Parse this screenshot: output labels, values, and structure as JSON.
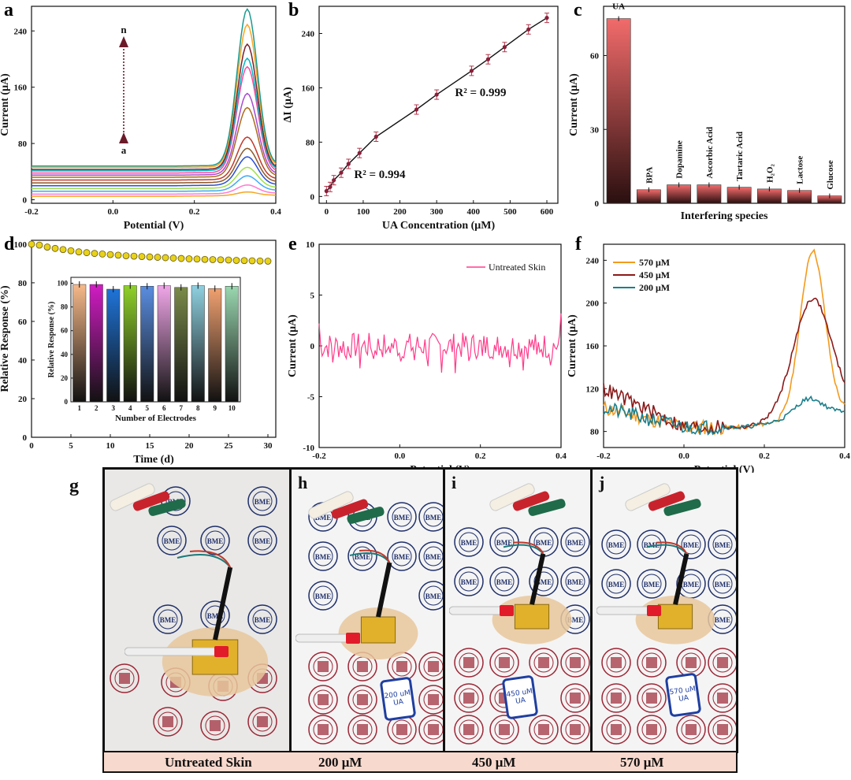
{
  "panel_labels": [
    "a",
    "b",
    "c",
    "d",
    "e",
    "f",
    "g",
    "h",
    "i",
    "j"
  ],
  "chart_data": [
    {
      "id": "a",
      "type": "line",
      "xlabel": "Potential (V)",
      "ylabel": "Current (μA)",
      "xlim": [
        -0.2,
        0.4
      ],
      "ylim": [
        -5,
        275
      ],
      "xticks": [
        "-0.2",
        "0.0",
        "0.2",
        "0.4"
      ],
      "yticks": [
        "0",
        "80",
        "160",
        "240"
      ],
      "arrow_labels": {
        "top": "n",
        "bottom": "a"
      },
      "peak_x": 0.33,
      "series": [
        {
          "baseline": 5,
          "peak": 10,
          "color": "#f5a623"
        },
        {
          "baseline": 8,
          "peak": 20,
          "color": "#ff7bd1"
        },
        {
          "baseline": 12,
          "peak": 33,
          "color": "#3fa9f5"
        },
        {
          "baseline": 16,
          "peak": 45,
          "color": "#a0e04a"
        },
        {
          "baseline": 20,
          "peak": 60,
          "color": "#2a4fd6"
        },
        {
          "baseline": 24,
          "peak": 72,
          "color": "#8c5a2b"
        },
        {
          "baseline": 28,
          "peak": 88,
          "color": "#c0392b"
        },
        {
          "baseline": 32,
          "peak": 130,
          "color": "#ad6b1b"
        },
        {
          "baseline": 35,
          "peak": 150,
          "color": "#a64bd1"
        },
        {
          "baseline": 38,
          "peak": 188,
          "color": "#ff4aa0"
        },
        {
          "baseline": 41,
          "peak": 200,
          "color": "#00b8c4"
        },
        {
          "baseline": 43,
          "peak": 220,
          "color": "#7a1f2b"
        },
        {
          "baseline": 46,
          "peak": 248,
          "color": "#ffa620"
        },
        {
          "baseline": 48,
          "peak": 270,
          "color": "#1a9a8e"
        }
      ]
    },
    {
      "id": "b",
      "type": "scatter",
      "xlabel": "UA Concentration (μM)",
      "ylabel": "ΔI (μA)",
      "xlim": [
        -20,
        630
      ],
      "ylim": [
        -10,
        280
      ],
      "xticks": [
        "0",
        "100",
        "200",
        "300",
        "400",
        "500",
        "600"
      ],
      "yticks": [
        "0",
        "80",
        "160",
        "240"
      ],
      "x": [
        0,
        10,
        20,
        40,
        60,
        90,
        135,
        245,
        300,
        395,
        440,
        485,
        550,
        600
      ],
      "y": [
        8,
        14,
        24,
        35,
        48,
        64,
        88,
        128,
        150,
        185,
        202,
        220,
        246,
        263
      ],
      "annotations": [
        "R² = 0.999",
        "R² = 0.994"
      ]
    },
    {
      "id": "c",
      "type": "bar",
      "xlabel": "Interfering species",
      "ylabel": "Current (μA)",
      "ylim": [
        0,
        80
      ],
      "yticks": [
        "0",
        "30",
        "60"
      ],
      "categories": [
        "UA",
        "BPA",
        "Dopamine",
        "Ascorbic Acid",
        "Tartaric Acid",
        "H₂O₂",
        "Lactose",
        "Glucose"
      ],
      "values": [
        75,
        5.5,
        7.5,
        7.5,
        6.5,
        5.8,
        5.2,
        3.0
      ]
    },
    {
      "id": "d",
      "type": "bar",
      "xlabel": "Time (d)",
      "ylabel": "Relative Response (%)",
      "xlim": [
        0,
        31
      ],
      "ylim": [
        0,
        102
      ],
      "xticks": [
        "0",
        "5",
        "10",
        "15",
        "20",
        "25",
        "30"
      ],
      "yticks": [
        "0",
        "20",
        "40",
        "60",
        "80",
        "100"
      ],
      "time": [
        0,
        1,
        2,
        3,
        4,
        5,
        6,
        7,
        8,
        9,
        10,
        11,
        12,
        13,
        14,
        15,
        16,
        17,
        18,
        19,
        20,
        21,
        22,
        23,
        24,
        25,
        26,
        27,
        28,
        29,
        30
      ],
      "stability": [
        100,
        99.5,
        98.5,
        97.8,
        97.2,
        96.6,
        96.0,
        95.6,
        95.2,
        94.9,
        94.6,
        94.3,
        94.0,
        93.8,
        93.6,
        93.4,
        93.2,
        93.0,
        92.8,
        92.6,
        92.4,
        92.3,
        92.1,
        92.0,
        91.9,
        91.8,
        91.6,
        91.5,
        91.4,
        91.3,
        91.2
      ],
      "inset": {
        "xlabel": "Number of Electrodes",
        "ylabel": "Relative Response (%)",
        "ylim": [
          0,
          105
        ],
        "yticks": [
          "0",
          "20",
          "40",
          "60",
          "80",
          "100"
        ],
        "categories": [
          "1",
          "2",
          "3",
          "4",
          "5",
          "6",
          "7",
          "8",
          "9",
          "10"
        ],
        "values": [
          99,
          99,
          95,
          98,
          97.5,
          98,
          96.5,
          98,
          95.5,
          97.5
        ],
        "colors": [
          "#f7b98a",
          "#d21cc4",
          "#1f74d8",
          "#8fd12a",
          "#5a8de0",
          "#f0a6e8",
          "#7a8a4a",
          "#8fd0e0",
          "#f0a070",
          "#9ad8b0"
        ]
      }
    },
    {
      "id": "e",
      "type": "line",
      "xlabel": "Potential (V)",
      "ylabel": "Current (μA)",
      "xlim": [
        -0.2,
        0.4
      ],
      "ylim": [
        -10,
        10
      ],
      "xticks": [
        "-0.2",
        "0.0",
        "0.2",
        "0.4"
      ],
      "yticks": [
        "-10",
        "-5",
        "0",
        "5",
        "10"
      ],
      "legend": "Untreated Skin",
      "color": "#ff3d8b"
    },
    {
      "id": "f",
      "type": "line",
      "xlabel": "Potential (V)",
      "ylabel": "Current (μA)",
      "xlim": [
        -0.2,
        0.4
      ],
      "ylim": [
        65,
        255
      ],
      "xticks": [
        "-0.2",
        "0.0",
        "0.2",
        "0.4"
      ],
      "yticks": [
        "80",
        "120",
        "160",
        "200",
        "240"
      ],
      "series": [
        {
          "name": "570 μM",
          "color": "#f39a1e",
          "peak": 250
        },
        {
          "name": "450 μM",
          "color": "#8b1a1a",
          "peak": 205
        },
        {
          "name": "200 μM",
          "color": "#1b7f8c",
          "peak": 112
        }
      ]
    }
  ],
  "photos": {
    "captions": [
      "Untreated Skin",
      "200 μM",
      "450 μM",
      "570 μM"
    ],
    "stamp_text": "BME",
    "tube_labels": [
      "200 uM UA",
      "450 uM UA",
      "570 uM UA"
    ]
  }
}
